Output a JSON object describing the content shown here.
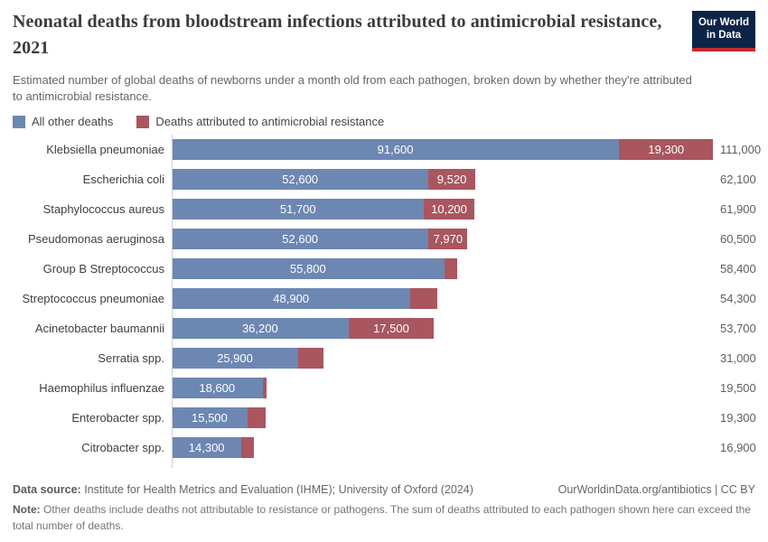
{
  "header": {
    "title": "Neonatal deaths from bloodstream infections attributed to antimicrobial resistance, 2021",
    "subtitle": "Estimated number of global deaths of newborns under a month old from each pathogen, broken down by whether they're attributed to antimicrobial resistance.",
    "logo": {
      "line1": "Our World",
      "line2": "in Data"
    }
  },
  "legend": [
    {
      "label": "All other deaths",
      "color": "#6d87b3"
    },
    {
      "label": "Deaths attributed to antimicrobial resistance",
      "color": "#a9565f"
    }
  ],
  "chart_data": {
    "type": "bar",
    "orientation": "horizontal",
    "title": "Neonatal deaths from bloodstream infections attributed to antimicrobial resistance, 2021",
    "axis_max": 111000,
    "grid": false,
    "legend_position": "top",
    "series_names": [
      "All other deaths",
      "Deaths attributed to antimicrobial resistance"
    ],
    "colors": {
      "other": "#6d87b3",
      "amr": "#a9565f",
      "axis_line": "#cfcfcf"
    },
    "rows": [
      {
        "category": "Klebsiella pneumoniae",
        "other": 91600,
        "other_label": "91,600",
        "amr": 19300,
        "amr_label": "19,300",
        "total": 111000,
        "total_label": "111,000"
      },
      {
        "category": "Escherichia coli",
        "other": 52600,
        "other_label": "52,600",
        "amr": 9520,
        "amr_label": "9,520",
        "total": 62100,
        "total_label": "62,100"
      },
      {
        "category": "Staphylococcus aureus",
        "other": 51700,
        "other_label": "51,700",
        "amr": 10200,
        "amr_label": "10,200",
        "total": 61900,
        "total_label": "61,900"
      },
      {
        "category": "Pseudomonas aeruginosa",
        "other": 52600,
        "other_label": "52,600",
        "amr": 7970,
        "amr_label": "7,970",
        "total": 60500,
        "total_label": "60,500"
      },
      {
        "category": "Group B Streptococcus",
        "other": 55800,
        "other_label": "55,800",
        "amr": 2600,
        "amr_label": "",
        "total": 58400,
        "total_label": "58,400"
      },
      {
        "category": "Streptococcus pneumoniae",
        "other": 48900,
        "other_label": "48,900",
        "amr": 5400,
        "amr_label": "",
        "total": 54300,
        "total_label": "54,300"
      },
      {
        "category": "Acinetobacter baumannii",
        "other": 36200,
        "other_label": "36,200",
        "amr": 17500,
        "amr_label": "17,500",
        "total": 53700,
        "total_label": "53,700"
      },
      {
        "category": "Serratia spp.",
        "other": 25900,
        "other_label": "25,900",
        "amr": 5100,
        "amr_label": "",
        "total": 31000,
        "total_label": "31,000"
      },
      {
        "category": "Haemophilus influenzae",
        "other": 18600,
        "other_label": "18,600",
        "amr": 900,
        "amr_label": "",
        "total": 19500,
        "total_label": "19,500"
      },
      {
        "category": "Enterobacter spp.",
        "other": 15500,
        "other_label": "15,500",
        "amr": 3800,
        "amr_label": "",
        "total": 19300,
        "total_label": "19,300"
      },
      {
        "category": "Citrobacter spp.",
        "other": 14300,
        "other_label": "14,300",
        "amr": 2600,
        "amr_label": "",
        "total": 16900,
        "total_label": "16,900"
      }
    ]
  },
  "footer": {
    "data_source_label": "Data source: ",
    "data_source_text": "Institute for Health Metrics and Evaluation (IHME); University of Oxford (2024)",
    "attribution": "OurWorldinData.org/antibiotics | CC BY",
    "note_label": "Note: ",
    "note_text": "Other deaths include deaths not attributable to resistance or pathogens. The sum of deaths attributed to each pathogen shown here can exceed the total number of deaths."
  }
}
